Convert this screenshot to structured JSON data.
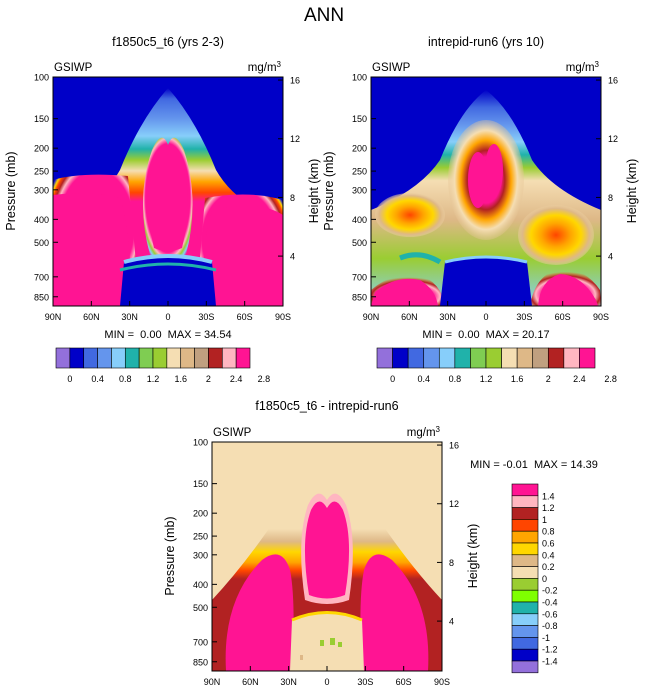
{
  "chart_data": {
    "type": "heatmap",
    "figure_title": "ANN",
    "panels": [
      {
        "id": "top-left",
        "title": "f1850c5_t6 (yrs 2-3)",
        "variable": "GSIWP",
        "units": "mg/m",
        "units_exp": "3",
        "ylabel": "Pressure (mb)",
        "y2label": "Height (km)",
        "x_ticks": [
          "90N",
          "60N",
          "30N",
          "0",
          "30S",
          "60S",
          "90S"
        ],
        "y_ticks": [
          "100",
          "150",
          "200",
          "250",
          "300",
          "400",
          "500",
          "700",
          "850"
        ],
        "y2_ticks": [
          "16",
          "12",
          "8",
          "4"
        ],
        "stats": "MIN =  0.00  MAX = 34.54",
        "colorbar": "bar1"
      },
      {
        "id": "top-right",
        "title": "intrepid-run6 (yrs 10)",
        "variable": "GSIWP",
        "units": "mg/m",
        "units_exp": "3",
        "ylabel": "Pressure (mb)",
        "y2label": "Height (km)",
        "x_ticks": [
          "90N",
          "60N",
          "30N",
          "0",
          "30S",
          "60S",
          "90S"
        ],
        "y_ticks": [
          "100",
          "150",
          "200",
          "250",
          "300",
          "400",
          "500",
          "700",
          "850"
        ],
        "y2_ticks": [
          "16",
          "12",
          "8",
          "4"
        ],
        "stats": "MIN =  0.00  MAX = 20.17",
        "colorbar": "bar1"
      },
      {
        "id": "bottom",
        "title": "f1850c5_t6 - intrepid-run6",
        "variable": "GSIWP",
        "units": "mg/m",
        "units_exp": "3",
        "ylabel": "Pressure (mb)",
        "y2label": "Height (km)",
        "x_ticks": [
          "90N",
          "60N",
          "30N",
          "0",
          "30S",
          "60S",
          "90S"
        ],
        "y_ticks": [
          "100",
          "150",
          "200",
          "250",
          "300",
          "400",
          "500",
          "700",
          "850"
        ],
        "y2_ticks": [
          "16",
          "12",
          "8",
          "4"
        ],
        "stats": "MIN = -0.01  MAX = 14.39",
        "colorbar": "bar2"
      }
    ],
    "colorbars": {
      "bar1": {
        "colors": [
          "#9370db",
          "#0000c8",
          "#4169e1",
          "#6495ed",
          "#87cefa",
          "#20b2aa",
          "#7fcd52",
          "#9acd32",
          "#f5deb3",
          "#deb887",
          "#c0a080",
          "#b22222",
          "#ffb6c1",
          "#ff1493"
        ],
        "labels": [
          "0",
          "0.4",
          "0.8",
          "1.2",
          "1.6",
          "2",
          "2.4",
          "2.8"
        ]
      },
      "bar2": {
        "colors": [
          "#9370db",
          "#0000c8",
          "#4169e1",
          "#6495ed",
          "#87cefa",
          "#20b2aa",
          "#7fff00",
          "#9acd32",
          "#f5deb3",
          "#deb887",
          "#ffd700",
          "#ffa500",
          "#ff4500",
          "#b22222",
          "#ffb6c1",
          "#ff1493"
        ],
        "labels": [
          "1.4",
          "1.2",
          "1",
          "0.8",
          "0.6",
          "0.4",
          "0.2",
          "0",
          "-0.2",
          "-0.4",
          "-0.6",
          "-0.8",
          "-1",
          "-1.2",
          "-1.4"
        ]
      }
    }
  }
}
